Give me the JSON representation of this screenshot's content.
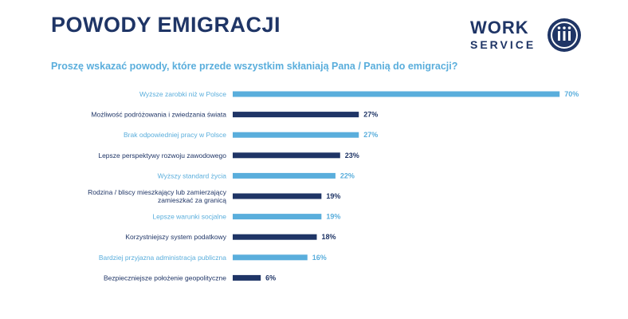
{
  "header": {
    "title": "POWODY EMIGRACJI",
    "subtitle": "Proszę wskazać powody, które przede wszystkim skłaniają Pana / Panią do emigracji?"
  },
  "logo": {
    "line1": "WORK",
    "line2": "SERVICE"
  },
  "colors": {
    "dark": "#1f3566",
    "light": "#5aaedc"
  },
  "chart_data": {
    "type": "bar",
    "orientation": "horizontal",
    "title": "Proszę wskazać powody, które przede wszystkim skłaniają Pana / Panią do emigracji?",
    "unit": "%",
    "xlim": [
      0,
      100
    ],
    "grid": false,
    "categories": [
      [
        "Wyższe zarobki niż w Polsce"
      ],
      [
        "Możliwość podróżowania i zwiedzania świata"
      ],
      [
        "Brak odpowiedniej pracy w Polsce"
      ],
      [
        "Lepsze perspektywy rozwoju zawodowego"
      ],
      [
        "Wyższy standard życia"
      ],
      [
        "Rodzina / bliscy mieszkający lub zamierzający",
        "zamieszkać za granicą"
      ],
      [
        "Lepsze warunki socjalne"
      ],
      [
        "Korzystniejszy system podatkowy"
      ],
      [
        "Bardziej przyjazna administracja publiczna"
      ],
      [
        "Bezpieczniejsze położenie geopolityczne"
      ]
    ],
    "values": [
      70,
      27,
      27,
      23,
      22,
      19,
      19,
      18,
      16,
      6
    ],
    "value_labels": [
      "70%",
      "27%",
      "27%",
      "23%",
      "22%",
      "19%",
      "19%",
      "18%",
      "16%",
      "6%"
    ],
    "bar_colors": [
      "light",
      "dark",
      "light",
      "dark",
      "light",
      "dark",
      "light",
      "dark",
      "light",
      "dark"
    ]
  }
}
